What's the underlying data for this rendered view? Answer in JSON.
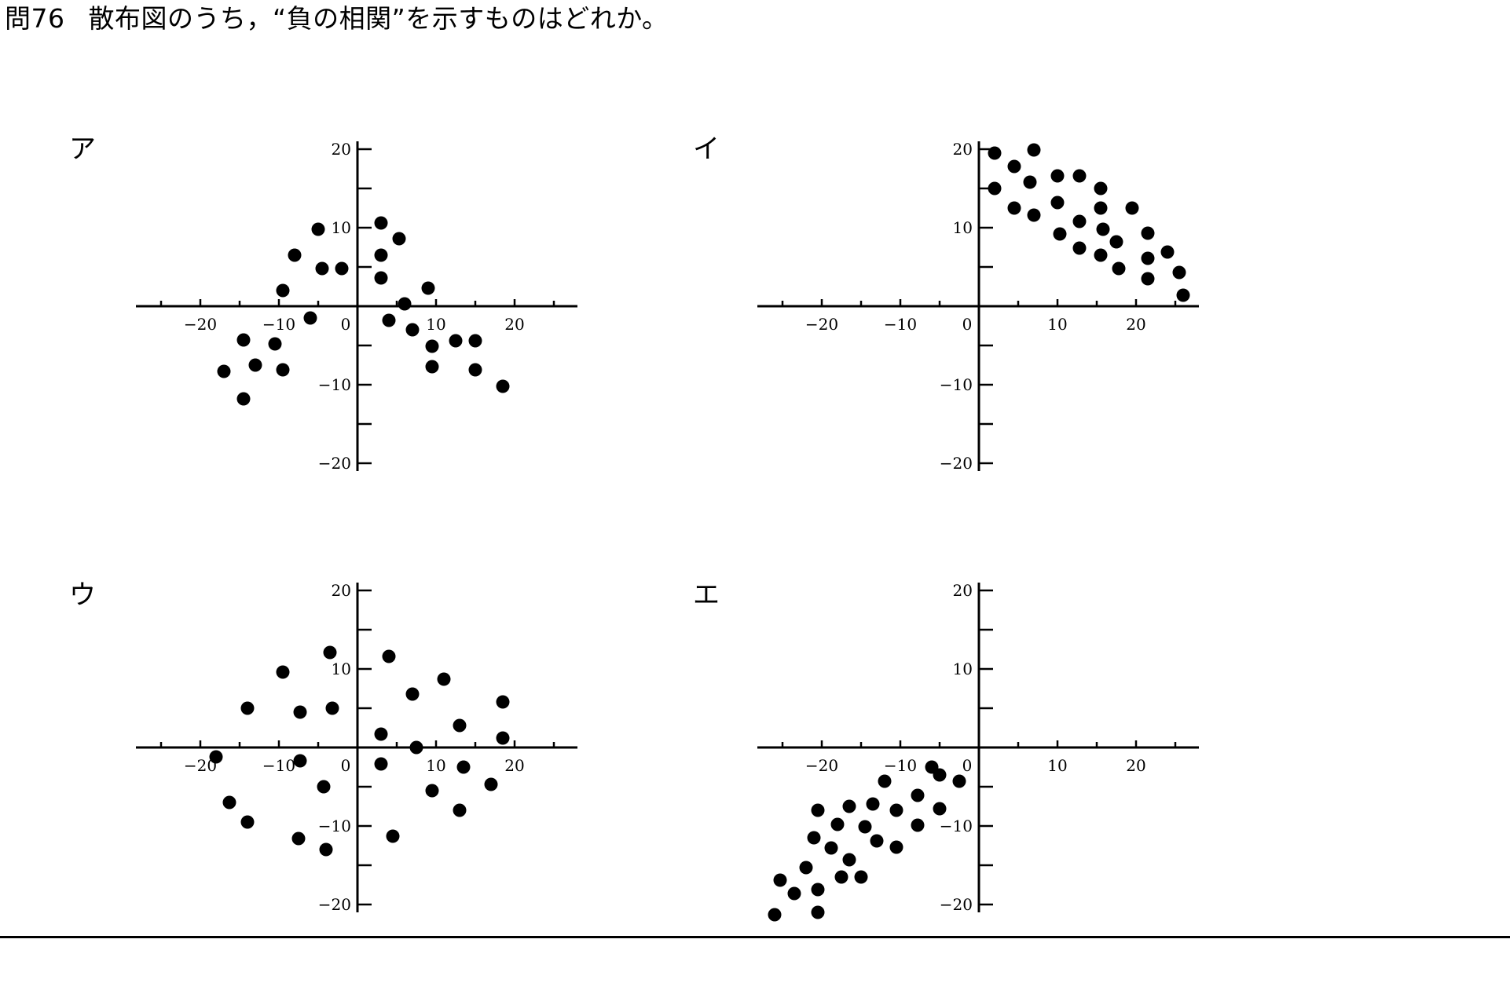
{
  "question": {
    "number": "問76",
    "text": "散布図のうち，“負の相関”を示すものはどれか。"
  },
  "chart_data": [
    {
      "type": "scatter",
      "label": "ア",
      "xlim": [
        -28,
        28
      ],
      "ylim": [
        -21,
        21
      ],
      "xticks": [
        "−20",
        "−10",
        "0",
        "10",
        "20"
      ],
      "yticks": [
        "20",
        "10",
        "−10",
        "−20"
      ],
      "points": [
        [
          -17,
          -8.3
        ],
        [
          -14.5,
          -11.8
        ],
        [
          -14.5,
          -4.3
        ],
        [
          -13,
          -7.5
        ],
        [
          -10.5,
          -4.8
        ],
        [
          -9.5,
          -8.1
        ],
        [
          -9.5,
          2
        ],
        [
          -8,
          6.5
        ],
        [
          -6,
          -1.5
        ],
        [
          -5,
          9.8
        ],
        [
          -4.5,
          4.8
        ],
        [
          -2,
          4.8
        ],
        [
          3,
          10.6
        ],
        [
          3,
          6.5
        ],
        [
          3,
          3.6
        ],
        [
          4,
          -1.8
        ],
        [
          5.3,
          8.6
        ],
        [
          6,
          0.3
        ],
        [
          7,
          -3
        ],
        [
          9,
          2.3
        ],
        [
          9.5,
          -5.1
        ],
        [
          9.5,
          -7.7
        ],
        [
          12.5,
          -4.4
        ],
        [
          15,
          -4.4
        ],
        [
          15,
          -8.1
        ],
        [
          18.5,
          -10.2
        ]
      ]
    },
    {
      "type": "scatter",
      "label": "イ",
      "xlim": [
        -28,
        28
      ],
      "ylim": [
        -21,
        21
      ],
      "xticks": [
        "−20",
        "−10",
        "0",
        "10",
        "20"
      ],
      "yticks": [
        "20",
        "10",
        "−10",
        "−20"
      ],
      "points": [
        [
          2,
          19.5
        ],
        [
          2,
          15
        ],
        [
          4.5,
          17.8
        ],
        [
          4.5,
          12.5
        ],
        [
          6.5,
          15.8
        ],
        [
          7,
          19.9
        ],
        [
          7,
          11.6
        ],
        [
          10,
          16.6
        ],
        [
          10,
          13.2
        ],
        [
          10.3,
          9.2
        ],
        [
          12.8,
          16.6
        ],
        [
          12.8,
          10.8
        ],
        [
          12.8,
          7.4
        ],
        [
          15.5,
          15
        ],
        [
          15.5,
          12.5
        ],
        [
          15.8,
          9.8
        ],
        [
          15.5,
          6.5
        ],
        [
          17.5,
          8.2
        ],
        [
          17.8,
          4.8
        ],
        [
          19.5,
          12.5
        ],
        [
          21.5,
          9.3
        ],
        [
          21.5,
          6.1
        ],
        [
          21.5,
          3.5
        ],
        [
          24,
          6.9
        ],
        [
          25.5,
          4.3
        ],
        [
          26,
          1.4
        ]
      ]
    },
    {
      "type": "scatter",
      "label": "ウ",
      "xlim": [
        -28,
        28
      ],
      "ylim": [
        -21,
        21
      ],
      "xticks": [
        "−20",
        "−10",
        "0",
        "10",
        "20"
      ],
      "yticks": [
        "20",
        "10",
        "−10",
        "−20"
      ],
      "points": [
        [
          -18,
          -1.2
        ],
        [
          -16.3,
          -7
        ],
        [
          -14,
          5
        ],
        [
          -14,
          -9.5
        ],
        [
          -9.5,
          9.6
        ],
        [
          -7.5,
          -11.6
        ],
        [
          -7.3,
          4.5
        ],
        [
          -7.3,
          -1.7
        ],
        [
          -4.3,
          -5
        ],
        [
          -4,
          -13
        ],
        [
          -3.5,
          12.1
        ],
        [
          -3.2,
          5
        ],
        [
          3,
          1.7
        ],
        [
          3,
          -2.1
        ],
        [
          4,
          11.6
        ],
        [
          4.5,
          -11.3
        ],
        [
          7,
          6.8
        ],
        [
          7.5,
          0
        ],
        [
          9.5,
          -5.5
        ],
        [
          11,
          8.7
        ],
        [
          13,
          2.8
        ],
        [
          13,
          -8
        ],
        [
          13.5,
          -2.5
        ],
        [
          17,
          -4.7
        ],
        [
          18.5,
          1.2
        ],
        [
          18.5,
          5.8
        ]
      ]
    },
    {
      "type": "scatter",
      "label": "エ",
      "xlim": [
        -28,
        28
      ],
      "ylim": [
        -21,
        21
      ],
      "xticks": [
        "−20",
        "−10",
        "0",
        "10",
        "20"
      ],
      "yticks": [
        "20",
        "10",
        "−10",
        "−20"
      ],
      "points": [
        [
          -26,
          -21.3
        ],
        [
          -25.3,
          -16.9
        ],
        [
          -23.5,
          -18.6
        ],
        [
          -22,
          -15.3
        ],
        [
          -21,
          -11.5
        ],
        [
          -20.5,
          -8
        ],
        [
          -20.5,
          -18.1
        ],
        [
          -20.5,
          -21
        ],
        [
          -18.8,
          -12.8
        ],
        [
          -18,
          -9.8
        ],
        [
          -17.5,
          -16.5
        ],
        [
          -16.5,
          -7.5
        ],
        [
          -16.5,
          -14.3
        ],
        [
          -15,
          -16.5
        ],
        [
          -14.5,
          -10.1
        ],
        [
          -13.5,
          -7.2
        ],
        [
          -13,
          -11.9
        ],
        [
          -12,
          -4.3
        ],
        [
          -10.5,
          -8
        ],
        [
          -10.5,
          -12.7
        ],
        [
          -7.8,
          -6.1
        ],
        [
          -7.8,
          -9.9
        ],
        [
          -6,
          -2.5
        ],
        [
          -5,
          -3.5
        ],
        [
          -5,
          -7.8
        ],
        [
          -2.5,
          -4.3
        ]
      ]
    }
  ]
}
